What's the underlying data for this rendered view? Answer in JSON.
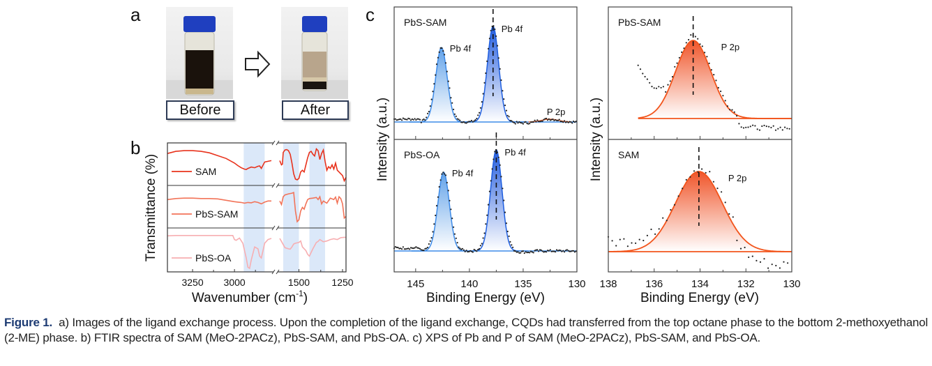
{
  "panel_a": {
    "letter": "a",
    "before_label": "Before",
    "after_label": "After",
    "arrow_icon": "right-arrow-outline",
    "colors": {
      "cap": "#1f3fbf",
      "before_liquid": "#1a120c",
      "after_top_liquid": "#b8a58c",
      "after_bottom_liquid": "#1a1510"
    }
  },
  "chart_data": [
    {
      "id": "b",
      "letter": "b",
      "type": "line",
      "title": "",
      "xlabel": "Wavenumber (cm-1)",
      "xlabel_main": "Wavenumber (cm",
      "xlabel_sup": "-1",
      "xlabel_end": ")",
      "ylabel": "Transmittance (%)",
      "x_axis_break": true,
      "xlim_left": [
        3400,
        2780
      ],
      "xlim_right": [
        1610,
        1230
      ],
      "xticks": [
        3250,
        3000,
        1500,
        1250
      ],
      "xtick_labels": [
        "3250",
        "3000",
        "1500",
        "1250"
      ],
      "highlight_bands": [
        [
          2945,
          2820
        ],
        [
          1590,
          1500
        ],
        [
          1440,
          1350
        ]
      ],
      "highlight_color": "#cfe0f7",
      "series": [
        {
          "name": "SAM",
          "color": "#e8321c",
          "x": [
            3400,
            3350,
            3300,
            3250,
            3200,
            3150,
            3100,
            3050,
            3000,
            2980,
            2960,
            2940,
            2930,
            2920,
            2900,
            2880,
            2860,
            2850,
            2840,
            2820,
            2800,
            2780,
            1610,
            1600,
            1595,
            1590,
            1580,
            1570,
            1560,
            1550,
            1540,
            1530,
            1520,
            1510,
            1500,
            1490,
            1480,
            1470,
            1460,
            1450,
            1440,
            1430,
            1420,
            1410,
            1400,
            1390,
            1380,
            1370,
            1360,
            1350,
            1340,
            1330,
            1320,
            1310,
            1300,
            1290,
            1280,
            1270,
            1260,
            1250,
            1240,
            1230
          ],
          "y": [
            0.82,
            0.88,
            0.9,
            0.9,
            0.88,
            0.84,
            0.76,
            0.68,
            0.55,
            0.48,
            0.42,
            0.38,
            0.37,
            0.4,
            0.44,
            0.42,
            0.46,
            0.47,
            0.4,
            0.58,
            0.6,
            0.62,
            0.62,
            0.5,
            0.52,
            0.85,
            0.92,
            0.93,
            0.9,
            0.8,
            0.55,
            0.25,
            0.1,
            0.08,
            0.12,
            0.3,
            0.35,
            0.3,
            0.5,
            0.7,
            0.85,
            0.88,
            0.8,
            0.75,
            0.95,
            0.9,
            0.65,
            0.82,
            0.92,
            0.6,
            0.35,
            0.45,
            0.4,
            0.5,
            0.38,
            0.55,
            0.35,
            0.3,
            0.25,
            0.2,
            0.05,
            0.15
          ]
        },
        {
          "name": "PbS-SAM",
          "color": "#f27358",
          "x": [
            3400,
            3350,
            3300,
            3250,
            3200,
            3150,
            3100,
            3050,
            3000,
            2980,
            2960,
            2940,
            2920,
            2900,
            2880,
            2860,
            2840,
            2820,
            2800,
            2780,
            1610,
            1600,
            1590,
            1580,
            1560,
            1540,
            1530,
            1520,
            1510,
            1500,
            1490,
            1480,
            1470,
            1460,
            1450,
            1440,
            1420,
            1400,
            1390,
            1380,
            1370,
            1360,
            1340,
            1320,
            1300,
            1290,
            1280,
            1270,
            1260,
            1250,
            1240,
            1230
          ],
          "y": [
            0.72,
            0.75,
            0.76,
            0.76,
            0.75,
            0.75,
            0.74,
            0.7,
            0.66,
            0.65,
            0.64,
            0.62,
            0.64,
            0.63,
            0.66,
            0.64,
            0.6,
            0.65,
            0.68,
            0.68,
            0.68,
            0.58,
            0.8,
            0.85,
            0.88,
            0.9,
            0.92,
            0.4,
            0.1,
            0.15,
            0.4,
            0.5,
            0.45,
            0.6,
            0.72,
            0.75,
            0.76,
            0.78,
            0.72,
            0.8,
            0.6,
            0.68,
            0.62,
            0.76,
            0.72,
            0.79,
            0.62,
            0.8,
            0.75,
            0.6,
            0.2,
            0.25
          ]
        },
        {
          "name": "PbS-OA",
          "color": "#f7aeb1",
          "x": [
            3400,
            3350,
            3300,
            3250,
            3200,
            3150,
            3100,
            3050,
            3010,
            3000,
            2990,
            2970,
            2950,
            2930,
            2920,
            2910,
            2900,
            2880,
            2860,
            2850,
            2840,
            2820,
            2800,
            2780,
            1610,
            1600,
            1580,
            1560,
            1550,
            1540,
            1530,
            1520,
            1500,
            1490,
            1480,
            1460,
            1450,
            1440,
            1420,
            1400,
            1390,
            1380,
            1360,
            1340,
            1320,
            1300,
            1280,
            1260,
            1240,
            1230
          ],
          "y": [
            0.9,
            0.91,
            0.91,
            0.91,
            0.91,
            0.91,
            0.91,
            0.91,
            0.91,
            0.8,
            0.78,
            0.84,
            0.7,
            0.3,
            0.05,
            0.02,
            0.25,
            0.6,
            0.55,
            0.35,
            0.3,
            0.7,
            0.8,
            0.83,
            0.83,
            0.75,
            0.58,
            0.55,
            0.54,
            0.6,
            0.68,
            0.7,
            0.72,
            0.76,
            0.6,
            0.5,
            0.4,
            0.35,
            0.55,
            0.72,
            0.75,
            0.8,
            0.74,
            0.76,
            0.8,
            0.82,
            0.8,
            0.85,
            0.86,
            0.86
          ]
        }
      ]
    },
    {
      "id": "c-pb",
      "letter": "c",
      "type": "area",
      "xlabel": "Binding Energy (eV)",
      "ylabel": "Intensity (a.u.)",
      "xlim": [
        147,
        130
      ],
      "xticks": [
        145,
        140,
        135,
        130
      ],
      "xtick_labels": [
        "145",
        "140",
        "135",
        "130"
      ],
      "minor_xticks": [
        142.5,
        137.5,
        132.5
      ],
      "subplots": [
        {
          "label": "PbS-SAM",
          "peak_color": "#1f5fe0",
          "peaks": [
            {
              "name": "Pb 4f",
              "center": 142.6,
              "height": 0.78,
              "fwhm": 1.25,
              "fill_color": "#6aa8ee"
            },
            {
              "name": "Pb 4f",
              "center": 137.8,
              "height": 1.0,
              "fwhm": 1.25,
              "fill_color": "#1f5fe0"
            },
            {
              "name": "P 2p",
              "center": 132.5,
              "height": 0.03,
              "fwhm": 1.8,
              "fill_color": "#f06a3a"
            }
          ],
          "dashed_line_at": 137.8,
          "annotations": [
            "Pb 4f",
            "Pb 4f",
            "P 2p"
          ]
        },
        {
          "label": "PbS-OA",
          "peak_color": "#1f5fe0",
          "peaks": [
            {
              "name": "Pb 4f",
              "center": 142.4,
              "height": 0.78,
              "fwhm": 1.25,
              "fill_color": "#6aa8ee"
            },
            {
              "name": "Pb 4f",
              "center": 137.5,
              "height": 1.0,
              "fwhm": 1.25,
              "fill_color": "#1f5fe0"
            }
          ],
          "dashed_line_at": 137.5,
          "annotations": [
            "Pb 4f",
            "Pb 4f"
          ]
        }
      ]
    },
    {
      "id": "c-p",
      "type": "area",
      "xlabel": "Binding Energy (eV)",
      "ylabel": "Intensity (a.u.)",
      "xlim": [
        138,
        130
      ],
      "xticks": [
        138,
        136,
        134,
        132,
        130
      ],
      "xtick_labels": [
        "138",
        "136",
        "134",
        "132",
        "130"
      ],
      "minor_xticks": [
        137,
        135,
        133,
        131
      ],
      "subplots": [
        {
          "label": "PbS-SAM",
          "peak": {
            "name": "P 2p",
            "center": 134.3,
            "height": 1.0,
            "fwhm": 1.8
          },
          "color": "#f2541b",
          "dashed_line_at": 134.3,
          "annotation": "P 2p",
          "fit_range": [
            136.7,
            130
          ]
        },
        {
          "label": "SAM",
          "peak": {
            "name": "P 2p",
            "center": 134.05,
            "height": 1.0,
            "fwhm": 2.4
          },
          "color": "#f2541b",
          "dashed_line_at": 134.05,
          "annotation": "P 2p",
          "fit_range": [
            138,
            130
          ]
        }
      ]
    }
  ],
  "caption": {
    "figure_label": "Figure 1.",
    "text": "a) Images of the ligand exchange process. Upon the completion of the ligand exchange, CQDs had transferred from the top octane phase to the bottom 2-methoxyethanol (2-ME) phase. b) FTIR spectra of SAM (MeO-2PACz), PbS-SAM, and PbS-OA. c) XPS of Pb and P of SAM (MeO-2PACz), PbS-SAM, and PbS-OA."
  }
}
